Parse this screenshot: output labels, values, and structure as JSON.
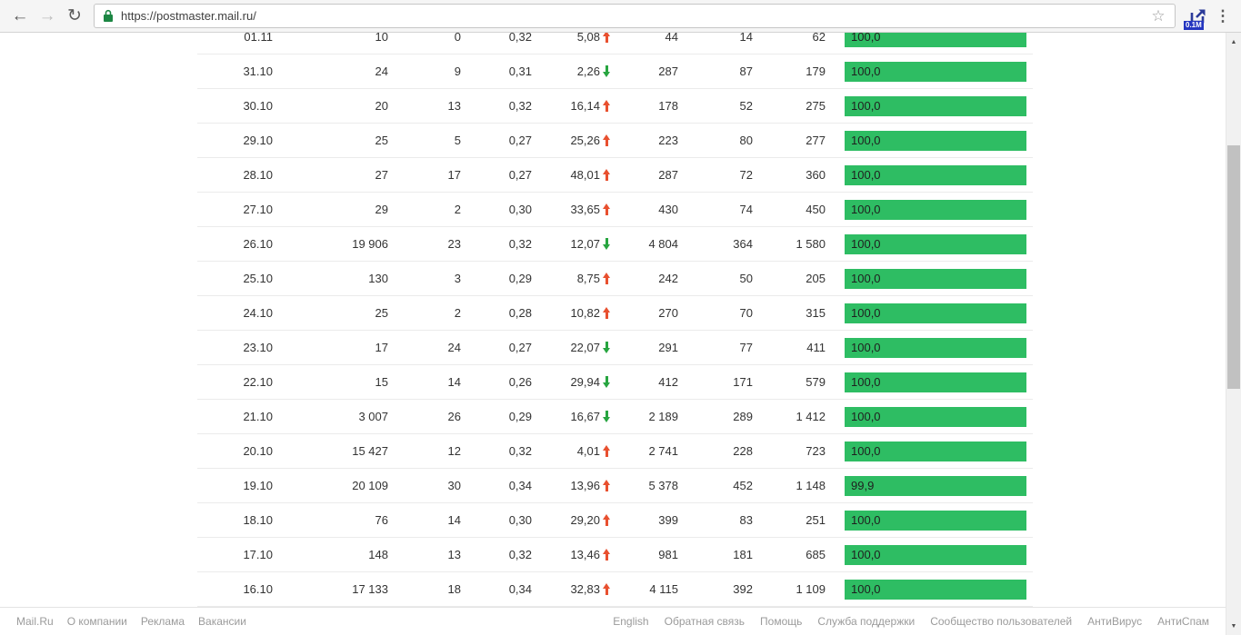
{
  "browser": {
    "url": "https://postmaster.mail.ru/",
    "extension_badge": "0.1M",
    "icons": {
      "back": "←",
      "forward": "→",
      "refresh": "↻",
      "star": "☆",
      "menu": "⋮",
      "scroll_up": "▲",
      "scroll_down": "▼"
    }
  },
  "colors": {
    "bar_green": "#2ebd63",
    "trend_up": "#e8502f",
    "trend_down": "#27a540",
    "lock_green": "#1c8643"
  },
  "table": {
    "rows": [
      {
        "date": "01.11",
        "cells": [
          "10",
          "0",
          "0,32"
        ],
        "delta": "5,08",
        "trend": "up",
        "cells2": [
          "44",
          "14",
          "62"
        ],
        "rate": "100,0",
        "rate_pct": 100
      },
      {
        "date": "31.10",
        "cells": [
          "24",
          "9",
          "0,31"
        ],
        "delta": "2,26",
        "trend": "down",
        "cells2": [
          "287",
          "87",
          "179"
        ],
        "rate": "100,0",
        "rate_pct": 100
      },
      {
        "date": "30.10",
        "cells": [
          "20",
          "13",
          "0,32"
        ],
        "delta": "16,14",
        "trend": "up",
        "cells2": [
          "178",
          "52",
          "275"
        ],
        "rate": "100,0",
        "rate_pct": 100
      },
      {
        "date": "29.10",
        "cells": [
          "25",
          "5",
          "0,27"
        ],
        "delta": "25,26",
        "trend": "up",
        "cells2": [
          "223",
          "80",
          "277"
        ],
        "rate": "100,0",
        "rate_pct": 100
      },
      {
        "date": "28.10",
        "cells": [
          "27",
          "17",
          "0,27"
        ],
        "delta": "48,01",
        "trend": "up",
        "cells2": [
          "287",
          "72",
          "360"
        ],
        "rate": "100,0",
        "rate_pct": 100
      },
      {
        "date": "27.10",
        "cells": [
          "29",
          "2",
          "0,30"
        ],
        "delta": "33,65",
        "trend": "up",
        "cells2": [
          "430",
          "74",
          "450"
        ],
        "rate": "100,0",
        "rate_pct": 100
      },
      {
        "date": "26.10",
        "cells": [
          "19 906",
          "23",
          "0,32"
        ],
        "delta": "12,07",
        "trend": "down",
        "cells2": [
          "4 804",
          "364",
          "1 580"
        ],
        "rate": "100,0",
        "rate_pct": 100
      },
      {
        "date": "25.10",
        "cells": [
          "130",
          "3",
          "0,29"
        ],
        "delta": "8,75",
        "trend": "up",
        "cells2": [
          "242",
          "50",
          "205"
        ],
        "rate": "100,0",
        "rate_pct": 100
      },
      {
        "date": "24.10",
        "cells": [
          "25",
          "2",
          "0,28"
        ],
        "delta": "10,82",
        "trend": "up",
        "cells2": [
          "270",
          "70",
          "315"
        ],
        "rate": "100,0",
        "rate_pct": 100
      },
      {
        "date": "23.10",
        "cells": [
          "17",
          "24",
          "0,27"
        ],
        "delta": "22,07",
        "trend": "down",
        "cells2": [
          "291",
          "77",
          "411"
        ],
        "rate": "100,0",
        "rate_pct": 100
      },
      {
        "date": "22.10",
        "cells": [
          "15",
          "14",
          "0,26"
        ],
        "delta": "29,94",
        "trend": "down",
        "cells2": [
          "412",
          "171",
          "579"
        ],
        "rate": "100,0",
        "rate_pct": 100
      },
      {
        "date": "21.10",
        "cells": [
          "3 007",
          "26",
          "0,29"
        ],
        "delta": "16,67",
        "trend": "down",
        "cells2": [
          "2 189",
          "289",
          "1 412"
        ],
        "rate": "100,0",
        "rate_pct": 100
      },
      {
        "date": "20.10",
        "cells": [
          "15 427",
          "12",
          "0,32"
        ],
        "delta": "4,01",
        "trend": "up",
        "cells2": [
          "2 741",
          "228",
          "723"
        ],
        "rate": "100,0",
        "rate_pct": 100
      },
      {
        "date": "19.10",
        "cells": [
          "20 109",
          "30",
          "0,34"
        ],
        "delta": "13,96",
        "trend": "up",
        "cells2": [
          "5 378",
          "452",
          "1 148"
        ],
        "rate": "99,9",
        "rate_pct": 99.9
      },
      {
        "date": "18.10",
        "cells": [
          "76",
          "14",
          "0,30"
        ],
        "delta": "29,20",
        "trend": "up",
        "cells2": [
          "399",
          "83",
          "251"
        ],
        "rate": "100,0",
        "rate_pct": 100
      },
      {
        "date": "17.10",
        "cells": [
          "148",
          "13",
          "0,32"
        ],
        "delta": "13,46",
        "trend": "up",
        "cells2": [
          "981",
          "181",
          "685"
        ],
        "rate": "100,0",
        "rate_pct": 100
      },
      {
        "date": "16.10",
        "cells": [
          "17 133",
          "18",
          "0,34"
        ],
        "delta": "32,83",
        "trend": "up",
        "cells2": [
          "4 115",
          "392",
          "1 109"
        ],
        "rate": "100,0",
        "rate_pct": 100
      }
    ]
  },
  "footer": {
    "left": [
      "Mail.Ru",
      "О компании",
      "Реклама",
      "Вакансии"
    ],
    "right": [
      "English",
      "Обратная связь",
      "Помощь",
      "Служба поддержки",
      "Сообщество пользователей",
      "АнтиВирус",
      "АнтиСпам"
    ]
  }
}
